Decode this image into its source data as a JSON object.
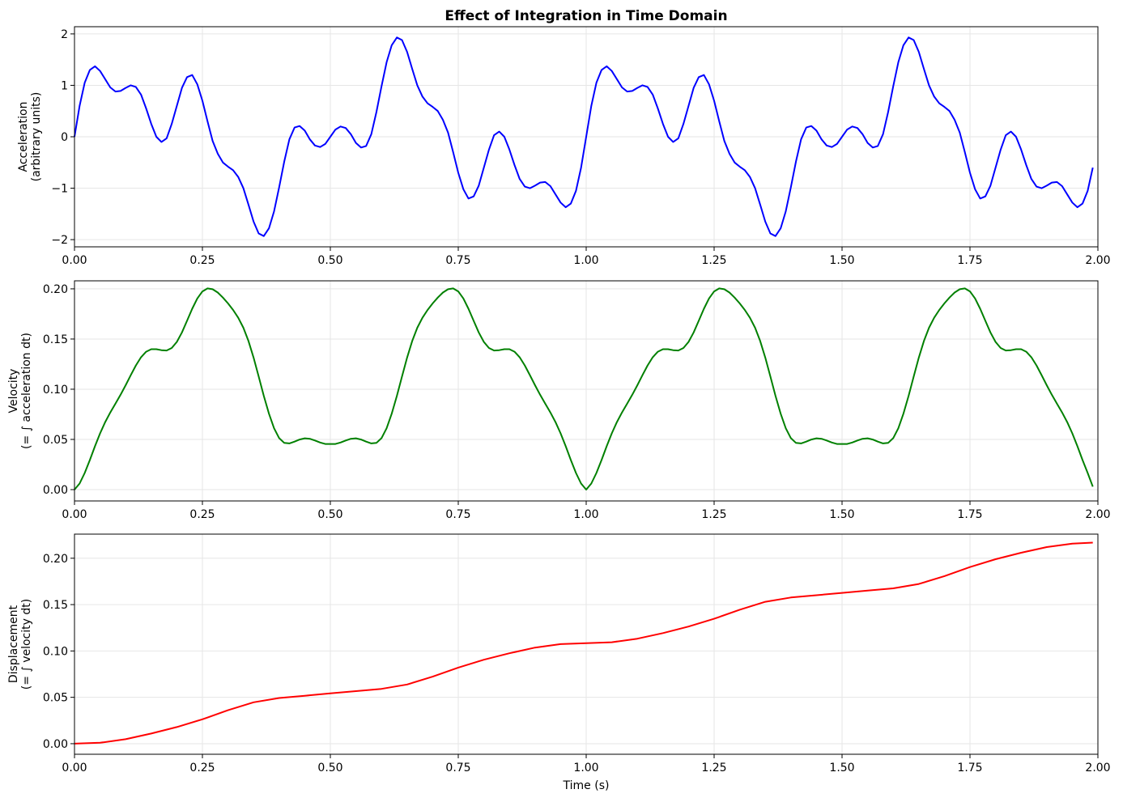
{
  "chart_data": [
    {
      "type": "line",
      "title": "Effect of Integration in Time Domain",
      "xlabel": "",
      "ylabel": [
        "Acceleration",
        "(arbitrary units)"
      ],
      "xlim": [
        0,
        2
      ],
      "ylim": [
        -2.14,
        2.14
      ],
      "xticks": [
        "0.00",
        "0.25",
        "0.50",
        "0.75",
        "1.00",
        "1.25",
        "1.50",
        "1.75",
        "2.00"
      ],
      "yticks": [
        -2,
        -1,
        0,
        1,
        2
      ],
      "ytick_labels": [
        "−2",
        "−1",
        "0",
        "1",
        "2"
      ],
      "grid": true,
      "x_start": 0,
      "x_step": 0.01,
      "series": [
        {
          "name": "acceleration",
          "color": "#0000ff",
          "values": [
            0,
            0.6,
            1.05,
            1.3,
            1.37,
            1.28,
            1.12,
            0.96,
            0.88,
            0.89,
            0.95,
            1.0,
            0.97,
            0.82,
            0.55,
            0.25,
            0.0,
            -0.1,
            -0.03,
            0.25,
            0.6,
            0.95,
            1.16,
            1.2,
            1.02,
            0.7,
            0.3,
            -0.08,
            -0.33,
            -0.5,
            -0.58,
            -0.65,
            -0.78,
            -1.0,
            -1.32,
            -1.65,
            -1.88,
            -1.93,
            -1.78,
            -1.45,
            -0.98,
            -0.48,
            -0.05,
            0.18,
            0.21,
            0.12,
            -0.05,
            -0.17,
            -0.2,
            -0.14,
            0,
            0.14,
            0.2,
            0.17,
            0.05,
            -0.12,
            -0.21,
            -0.18,
            0.05,
            0.48,
            0.98,
            1.45,
            1.78,
            1.93,
            1.88,
            1.65,
            1.32,
            1.0,
            0.78,
            0.65,
            0.58,
            0.5,
            0.33,
            0.08,
            -0.3,
            -0.7,
            -1.02,
            -1.2,
            -1.16,
            -0.95,
            -0.6,
            -0.25,
            0.03,
            0.1,
            0.0,
            -0.25,
            -0.55,
            -0.82,
            -0.97,
            -1.0,
            -0.95,
            -0.89,
            -0.88,
            -0.96,
            -1.12,
            -1.28,
            -1.37,
            -1.3,
            -1.05,
            -0.6,
            0,
            0.6,
            1.05,
            1.3,
            1.37,
            1.28,
            1.12,
            0.96,
            0.88,
            0.89,
            0.95,
            1.0,
            0.97,
            0.82,
            0.55,
            0.25,
            0.0,
            -0.1,
            -0.03,
            0.25,
            0.6,
            0.95,
            1.16,
            1.2,
            1.02,
            0.7,
            0.3,
            -0.08,
            -0.33,
            -0.5,
            -0.58,
            -0.65,
            -0.78,
            -1.0,
            -1.32,
            -1.65,
            -1.88,
            -1.93,
            -1.78,
            -1.45,
            -0.98,
            -0.48,
            -0.05,
            0.18,
            0.21,
            0.12,
            -0.05,
            -0.17,
            -0.2,
            -0.14,
            0,
            0.14,
            0.2,
            0.17,
            0.05,
            -0.12,
            -0.21,
            -0.18,
            0.05,
            0.48,
            0.98,
            1.45,
            1.78,
            1.93,
            1.88,
            1.65,
            1.32,
            1.0,
            0.78,
            0.65,
            0.58,
            0.5,
            0.33,
            0.08,
            -0.3,
            -0.7,
            -1.02,
            -1.2,
            -1.16,
            -0.95,
            -0.6,
            -0.25,
            0.03,
            0.1,
            0.0,
            -0.25,
            -0.55,
            -0.82,
            -0.97,
            -1.0,
            -0.95,
            -0.89,
            -0.88,
            -0.96,
            -1.12,
            -1.28,
            -1.37,
            -1.3,
            -1.05,
            -0.6
          ]
        }
      ]
    },
    {
      "type": "line",
      "xlabel": "",
      "ylabel": [
        "Velocity",
        "(= ∫ acceleration dt)"
      ],
      "xlim": [
        0,
        2
      ],
      "ylim": [
        -0.0113,
        0.208
      ],
      "xticks": [
        "0.00",
        "0.25",
        "0.50",
        "0.75",
        "1.00",
        "1.25",
        "1.50",
        "1.75",
        "2.00"
      ],
      "yticks": [
        0,
        0.05,
        0.1,
        0.15,
        0.2
      ],
      "ytick_labels": [
        "0.00",
        "0.05",
        "0.10",
        "0.15",
        "0.20"
      ],
      "grid": true,
      "x_start": 0,
      "x_step": 0.01,
      "series": [
        {
          "name": "velocity",
          "color": "#008000",
          "values": [
            0,
            0.006,
            0.0165,
            0.0295,
            0.0432,
            0.056,
            0.0672,
            0.0768,
            0.0856,
            0.0945,
            0.104,
            0.114,
            0.1237,
            0.1319,
            0.1374,
            0.1399,
            0.1399,
            0.1389,
            0.1386,
            0.1411,
            0.1471,
            0.1566,
            0.1682,
            0.1802,
            0.1904,
            0.1974,
            0.2004,
            0.1996,
            0.1963,
            0.1913,
            0.1855,
            0.179,
            0.1712,
            0.1612,
            0.148,
            0.1315,
            0.1127,
            0.0934,
            0.0756,
            0.0611,
            0.0513,
            0.0465,
            0.046,
            0.0478,
            0.0499,
            0.0511,
            0.0506,
            0.0489,
            0.0469,
            0.0455,
            0.0455,
            0.0455,
            0.0469,
            0.0489,
            0.0506,
            0.0511,
            0.0499,
            0.0478,
            0.046,
            0.0465,
            0.0513,
            0.0611,
            0.0756,
            0.0934,
            0.1127,
            0.1315,
            0.148,
            0.1612,
            0.1712,
            0.179,
            0.1855,
            0.1913,
            0.1963,
            0.1996,
            0.2004,
            0.1974,
            0.1904,
            0.1802,
            0.1682,
            0.1566,
            0.1471,
            0.1411,
            0.1386,
            0.1389,
            0.1399,
            0.1399,
            0.1374,
            0.1319,
            0.1237,
            0.114,
            0.104,
            0.0945,
            0.0856,
            0.0768,
            0.0672,
            0.056,
            0.0432,
            0.0295,
            0.0165,
            0.006,
            0,
            0.006,
            0.0165,
            0.0295,
            0.0432,
            0.056,
            0.0672,
            0.0768,
            0.0856,
            0.0945,
            0.104,
            0.114,
            0.1237,
            0.1319,
            0.1374,
            0.1399,
            0.1399,
            0.1389,
            0.1386,
            0.1411,
            0.1471,
            0.1566,
            0.1682,
            0.1802,
            0.1904,
            0.1974,
            0.2004,
            0.1996,
            0.1963,
            0.1913,
            0.1855,
            0.179,
            0.1712,
            0.1612,
            0.148,
            0.1315,
            0.1127,
            0.0934,
            0.0756,
            0.0611,
            0.0513,
            0.0465,
            0.046,
            0.0478,
            0.0499,
            0.0511,
            0.0506,
            0.0489,
            0.0469,
            0.0455,
            0.0455,
            0.0455,
            0.0469,
            0.0489,
            0.0506,
            0.0511,
            0.0499,
            0.0478,
            0.046,
            0.0465,
            0.0513,
            0.0611,
            0.0756,
            0.0934,
            0.1127,
            0.1315,
            0.148,
            0.1612,
            0.1712,
            0.179,
            0.1855,
            0.1913,
            0.1963,
            0.1996,
            0.2004,
            0.1974,
            0.1904,
            0.1802,
            0.1682,
            0.1566,
            0.1471,
            0.1411,
            0.1386,
            0.1389,
            0.1399,
            0.1399,
            0.1374,
            0.1319,
            0.1237,
            0.114,
            0.104,
            0.0945,
            0.0856,
            0.0768,
            0.0672,
            0.056,
            0.0432,
            0.0295,
            0.0165,
            0.003
          ]
        }
      ]
    },
    {
      "type": "line",
      "xlabel": "Time (s)",
      "ylabel": [
        "Displacement",
        "(= ∫ velocity dt)"
      ],
      "xlim": [
        0,
        2
      ],
      "ylim": [
        -0.0114,
        0.226
      ],
      "xticks": [
        "0.00",
        "0.25",
        "0.50",
        "0.75",
        "1.00",
        "1.25",
        "1.50",
        "1.75",
        "2.00"
      ],
      "yticks": [
        0,
        0.05,
        0.1,
        0.15,
        0.2
      ],
      "ytick_labels": [
        "0.00",
        "0.05",
        "0.10",
        "0.15",
        "0.20"
      ],
      "grid": true,
      "x": [
        0,
        0.05,
        0.1,
        0.15,
        0.2,
        0.25,
        0.3,
        0.35,
        0.4,
        0.45,
        0.5,
        0.55,
        0.6,
        0.65,
        0.7,
        0.75,
        0.8,
        0.85,
        0.9,
        0.95,
        1.0,
        1.05,
        1.1,
        1.15,
        1.2,
        1.25,
        1.3,
        1.35,
        1.4,
        1.45,
        1.5,
        1.55,
        1.6,
        1.65,
        1.7,
        1.75,
        1.8,
        1.85,
        1.9,
        1.95,
        1.99
      ],
      "series": [
        {
          "name": "displacement",
          "color": "#ff0000",
          "values": [
            0,
            0.001,
            0.0048,
            0.0109,
            0.0179,
            0.0263,
            0.0361,
            0.0446,
            0.0493,
            0.0517,
            0.0542,
            0.0567,
            0.0591,
            0.0638,
            0.0723,
            0.0821,
            0.0905,
            0.0975,
            0.1036,
            0.1074,
            0.1084,
            0.1094,
            0.1132,
            0.1193,
            0.1263,
            0.1347,
            0.1445,
            0.153,
            0.1577,
            0.1601,
            0.1626,
            0.1651,
            0.1675,
            0.1722,
            0.1807,
            0.1905,
            0.1989,
            0.2059,
            0.212,
            0.2158,
            0.2168
          ]
        }
      ]
    }
  ]
}
